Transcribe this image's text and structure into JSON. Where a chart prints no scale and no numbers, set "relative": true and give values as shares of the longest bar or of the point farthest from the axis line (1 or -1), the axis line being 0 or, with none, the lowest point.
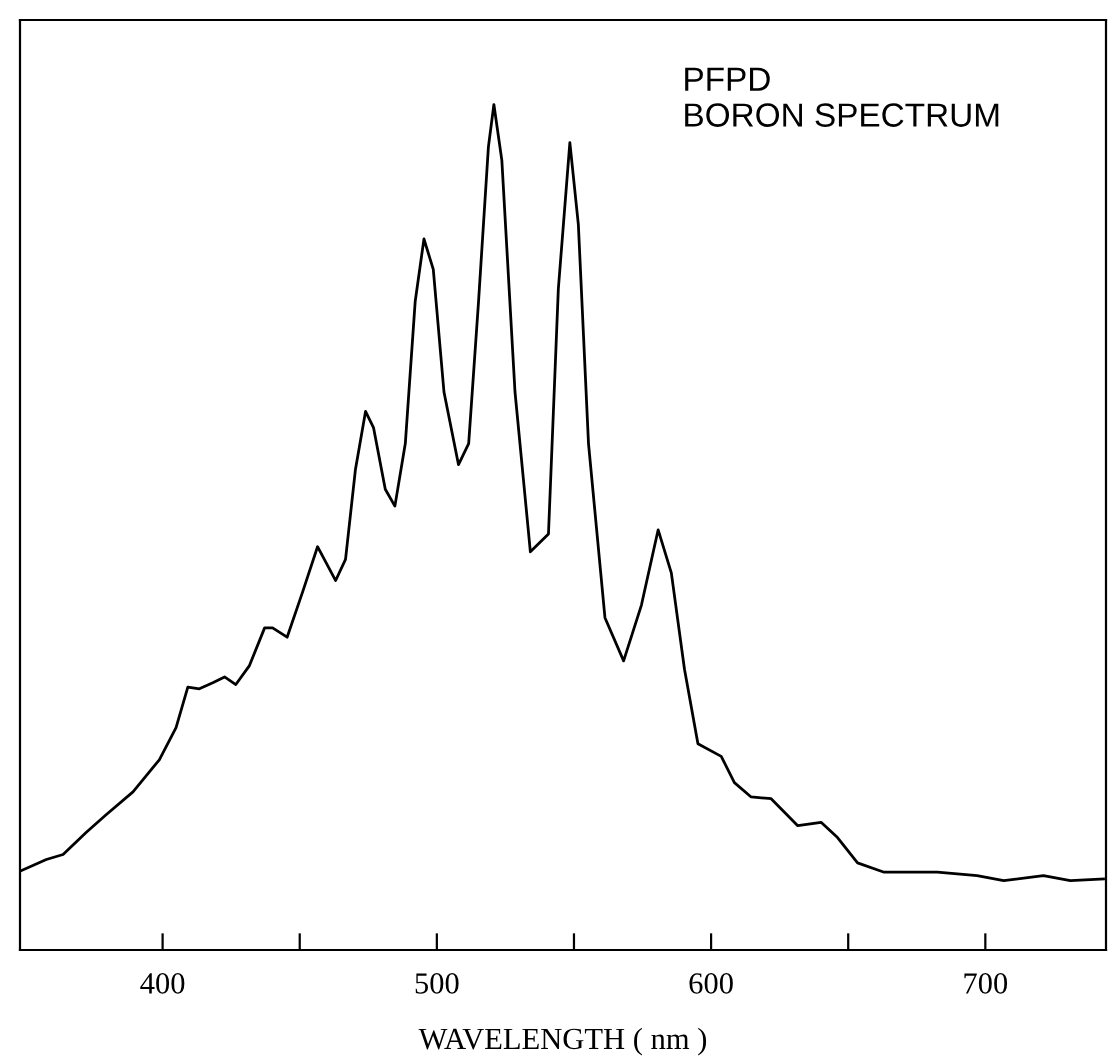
{
  "chart_data": {
    "type": "line",
    "relative": true,
    "xlabel": "WAVELENGTH ( nm )",
    "annotations": [
      "PFPD\nBORON SPECTRUM"
    ],
    "xlim": [
      348,
      744
    ],
    "xticks": [
      400,
      {
        "value": 450,
        "label": null
      },
      500,
      {
        "value": 550,
        "label": null
      },
      600,
      {
        "value": 650,
        "label": null
      },
      700
    ],
    "grid": false,
    "legend": false,
    "marker": "none",
    "line_style": "solid",
    "series": [
      {
        "color": "#000000",
        "x": [
          348.6,
          357.6,
          363.7,
          372.1,
          379.4,
          389.2,
          398.8,
          404.9,
          409.2,
          413.4,
          418.3,
          422.6,
          426.7,
          431.6,
          437.2,
          440.1,
          445.4,
          451.0,
          456.5,
          463.1,
          466.7,
          470.3,
          474.0,
          476.9,
          481.2,
          484.7,
          488.5,
          492.1,
          495.3,
          498.7,
          502.6,
          507.9,
          511.6,
          515.2,
          518.8,
          520.8,
          523.7,
          528.5,
          534.1,
          540.7,
          544.3,
          548.5,
          551.6,
          555.3,
          561.3,
          568.1,
          574.6,
          580.7,
          585.5,
          590.3,
          595.2,
          603.7,
          608.5,
          614.6,
          621.9,
          631.6,
          640.1,
          646.1,
          653.4,
          663.1,
          682.5,
          697.0,
          706.7,
          721.2,
          731.0,
          743.1
        ],
        "values": [
          0.094,
          0.107,
          0.113,
          0.139,
          0.16,
          0.187,
          0.225,
          0.263,
          0.311,
          0.309,
          0.316,
          0.323,
          0.314,
          0.336,
          0.381,
          0.381,
          0.37,
          0.423,
          0.477,
          0.437,
          0.462,
          0.568,
          0.637,
          0.618,
          0.545,
          0.525,
          0.599,
          0.767,
          0.841,
          0.805,
          0.66,
          0.574,
          0.599,
          0.767,
          0.95,
          1.0,
          0.934,
          0.66,
          0.471,
          0.492,
          0.782,
          0.955,
          0.858,
          0.599,
          0.393,
          0.342,
          0.408,
          0.497,
          0.446,
          0.332,
          0.244,
          0.229,
          0.198,
          0.181,
          0.179,
          0.147,
          0.151,
          0.133,
          0.103,
          0.092,
          0.092,
          0.088,
          0.082,
          0.088,
          0.082,
          0.084
        ]
      }
    ]
  }
}
